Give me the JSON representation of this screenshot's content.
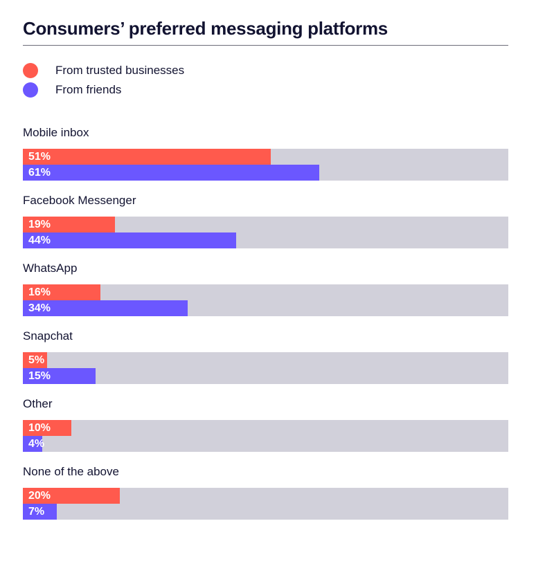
{
  "title": "Consumers’ preferred messaging platforms",
  "colors": {
    "business": "#ff5a4d",
    "friends": "#6b57ff",
    "track": "#d1d0da"
  },
  "chart_data": {
    "type": "bar",
    "orientation": "horizontal",
    "title": "Consumers’ preferred messaging platforms",
    "legend": "top-left",
    "xlim": [
      0,
      100
    ],
    "categories": [
      "Mobile inbox",
      "Facebook Messenger",
      "WhatsApp",
      "Snapchat",
      "Other",
      "None of the above"
    ],
    "series": [
      {
        "name": "From trusted businesses",
        "color": "#ff5a4d",
        "values": [
          51,
          19,
          16,
          5,
          10,
          20
        ],
        "labels": [
          "51%",
          "19%",
          "16%",
          "5%",
          "10%",
          "20%"
        ]
      },
      {
        "name": "From friends",
        "color": "#6b57ff",
        "values": [
          61,
          44,
          34,
          15,
          4,
          7
        ],
        "labels": [
          "61%",
          "44%",
          "34%",
          "15%",
          "4%",
          "7%"
        ]
      }
    ]
  }
}
